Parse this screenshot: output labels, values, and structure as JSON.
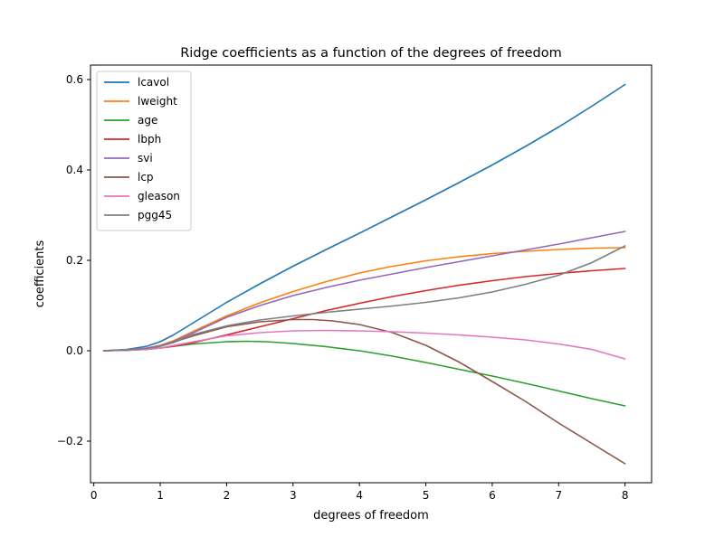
{
  "chart_data": {
    "type": "line",
    "title": "Ridge coefficients as a function of the degrees of freedom",
    "xlabel": "degrees of freedom",
    "ylabel": "coefficients",
    "xlim": [
      -0.05,
      8.4
    ],
    "ylim": [
      -0.292,
      0.632
    ],
    "xticks": [
      0,
      1,
      2,
      3,
      4,
      5,
      6,
      7,
      8
    ],
    "yticks": [
      -0.2,
      0.0,
      0.2,
      0.4,
      0.6
    ],
    "ytick_labels": [
      "−0.2",
      "0.0",
      "0.2",
      "0.4",
      "0.6"
    ],
    "grid": false,
    "legend_position": "top-left",
    "series": [
      {
        "name": "lcavol",
        "color": "#1f77b4",
        "x": [
          0.15,
          0.5,
          0.8,
          1.0,
          1.2,
          1.5,
          2.0,
          2.5,
          3.0,
          3.5,
          4.0,
          4.5,
          5.0,
          5.5,
          6.0,
          6.5,
          7.0,
          7.5,
          8.0
        ],
        "y": [
          0.0,
          0.003,
          0.01,
          0.02,
          0.035,
          0.062,
          0.107,
          0.148,
          0.187,
          0.224,
          0.26,
          0.297,
          0.334,
          0.372,
          0.411,
          0.452,
          0.495,
          0.541,
          0.589
        ]
      },
      {
        "name": "lweight",
        "color": "#ff7f0e",
        "x": [
          0.15,
          0.5,
          0.8,
          1.0,
          1.2,
          1.5,
          2.0,
          2.5,
          3.0,
          3.5,
          4.0,
          4.5,
          5.0,
          5.5,
          6.0,
          6.5,
          7.0,
          7.5,
          8.0
        ],
        "y": [
          0.0,
          0.002,
          0.006,
          0.012,
          0.022,
          0.043,
          0.077,
          0.106,
          0.131,
          0.153,
          0.172,
          0.187,
          0.199,
          0.208,
          0.215,
          0.22,
          0.224,
          0.227,
          0.228
        ]
      },
      {
        "name": "age",
        "color": "#2ca02c",
        "x": [
          0.15,
          0.5,
          0.8,
          1.0,
          1.5,
          2.0,
          2.3,
          2.6,
          3.0,
          3.5,
          4.0,
          4.5,
          5.0,
          5.5,
          6.0,
          6.5,
          7.0,
          7.5,
          8.0
        ],
        "y": [
          0.0,
          0.001,
          0.003,
          0.006,
          0.015,
          0.02,
          0.021,
          0.02,
          0.016,
          0.009,
          0.0,
          -0.012,
          -0.026,
          -0.041,
          -0.056,
          -0.072,
          -0.089,
          -0.106,
          -0.122
        ]
      },
      {
        "name": "lbph",
        "color": "#d62728",
        "x": [
          0.15,
          0.5,
          0.8,
          1.0,
          1.2,
          1.5,
          2.0,
          2.5,
          3.0,
          3.5,
          4.0,
          4.5,
          5.0,
          5.5,
          6.0,
          6.5,
          7.0,
          7.5,
          8.0
        ],
        "y": [
          0.0,
          0.001,
          0.003,
          0.006,
          0.01,
          0.018,
          0.035,
          0.053,
          0.071,
          0.089,
          0.105,
          0.12,
          0.133,
          0.145,
          0.155,
          0.164,
          0.171,
          0.177,
          0.182
        ]
      },
      {
        "name": "svi",
        "color": "#9467bd",
        "x": [
          0.15,
          0.5,
          0.8,
          1.0,
          1.2,
          1.5,
          2.0,
          2.5,
          3.0,
          3.5,
          4.0,
          4.5,
          5.0,
          5.5,
          6.0,
          6.5,
          7.0,
          7.5,
          8.0
        ],
        "y": [
          0.0,
          0.002,
          0.006,
          0.011,
          0.02,
          0.04,
          0.074,
          0.1,
          0.122,
          0.14,
          0.156,
          0.17,
          0.184,
          0.197,
          0.21,
          0.223,
          0.236,
          0.25,
          0.264
        ]
      },
      {
        "name": "lcp",
        "color": "#8c564b",
        "x": [
          0.15,
          0.5,
          0.8,
          1.0,
          1.5,
          2.0,
          2.5,
          3.0,
          3.3,
          3.6,
          4.0,
          4.5,
          5.0,
          5.5,
          6.0,
          6.5,
          7.0,
          7.5,
          8.0
        ],
        "y": [
          0.0,
          0.001,
          0.004,
          0.01,
          0.033,
          0.053,
          0.064,
          0.069,
          0.069,
          0.066,
          0.058,
          0.04,
          0.012,
          -0.025,
          -0.068,
          -0.112,
          -0.16,
          -0.205,
          -0.25
        ]
      },
      {
        "name": "gleason",
        "color": "#e377c2",
        "x": [
          0.15,
          0.5,
          0.8,
          1.0,
          1.5,
          2.0,
          2.5,
          3.0,
          3.5,
          4.0,
          4.5,
          5.0,
          5.5,
          6.0,
          6.5,
          7.0,
          7.5,
          8.0
        ],
        "y": [
          0.0,
          0.001,
          0.003,
          0.006,
          0.02,
          0.033,
          0.04,
          0.044,
          0.045,
          0.044,
          0.042,
          0.039,
          0.035,
          0.03,
          0.024,
          0.015,
          0.003,
          -0.018
        ]
      },
      {
        "name": "pgg45",
        "color": "#7f7f7f",
        "x": [
          0.15,
          0.5,
          0.8,
          1.0,
          1.2,
          1.5,
          2.0,
          2.5,
          3.0,
          3.5,
          4.0,
          4.5,
          5.0,
          5.5,
          6.0,
          6.5,
          7.0,
          7.5,
          8.0
        ],
        "y": [
          0.0,
          0.002,
          0.005,
          0.01,
          0.018,
          0.036,
          0.055,
          0.068,
          0.077,
          0.085,
          0.092,
          0.099,
          0.107,
          0.117,
          0.13,
          0.147,
          0.167,
          0.195,
          0.232
        ]
      }
    ]
  }
}
